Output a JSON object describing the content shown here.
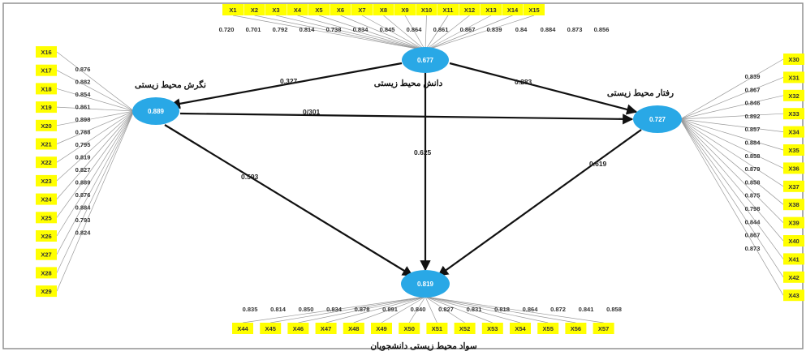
{
  "latent": {
    "knowledge": {
      "name": "دانش محیط زیستی",
      "r2": "0.677"
    },
    "attitude": {
      "name": "نگرش محیط زیستی",
      "r2": "0.889"
    },
    "behavior": {
      "name": "رفتار محیط زیستی",
      "r2": "0.727"
    },
    "literacy": {
      "name": "سواد محیط زیستی دانشجویان",
      "r2": "0.819"
    }
  },
  "paths": {
    "knowledge_attitude": "0.327",
    "attitude_behavior": "0/301",
    "knowledge_behavior": "0.283",
    "knowledge_literacy": "0.625",
    "attitude_literacy": "0.593",
    "behavior_literacy": "0.619"
  },
  "indicators": {
    "top": {
      "labels": [
        "X1",
        "X2",
        "X3",
        "X4",
        "X5",
        "X6",
        "X7",
        "X8",
        "X9",
        "X10",
        "X11",
        "X12",
        "X13",
        "X14",
        "X15"
      ],
      "loadings": [
        "0.720",
        "0.701",
        "0.792",
        "0.814",
        "0.738",
        "0.834",
        "0.845",
        "0.864",
        "0.861",
        "0.867",
        "0.839",
        "0.84",
        "0.884",
        "0.873",
        "0.856"
      ]
    },
    "left": {
      "labels": [
        "X16",
        "X17",
        "X18",
        "X19",
        "X20",
        "X21",
        "X22",
        "X23",
        "X24",
        "X25",
        "X26",
        "X27",
        "X28",
        "X29"
      ],
      "loadings": [
        "0.876",
        "0.882",
        "0.854",
        "0.861",
        "0.898",
        "0.788",
        "0.795",
        "0.819",
        "0.827",
        "0.889",
        "0.876",
        "0.884",
        "0.793",
        "0.824"
      ]
    },
    "right": {
      "labels": [
        "X30",
        "X31",
        "X32",
        "X33",
        "X34",
        "X35",
        "X36",
        "X37",
        "X38",
        "X39",
        "X40",
        "X41",
        "X42",
        "X43"
      ],
      "loadings": [
        "0.839",
        "0.867",
        "0.846",
        "0.892",
        "0.857",
        "0.884",
        "0.858",
        "0.879",
        "0.858",
        "0.875",
        "0.798",
        "0.844",
        "0.867",
        "0.873"
      ]
    },
    "bottom": {
      "labels": [
        "X44",
        "X45",
        "X46",
        "X47",
        "X48",
        "X49",
        "X50",
        "X51",
        "X52",
        "X53",
        "X54",
        "X55",
        "X56",
        "X57"
      ],
      "loadings": [
        "0.835",
        "0.814",
        "0.850",
        "0.834",
        "0.878",
        "0.891",
        "0.840",
        "0.827",
        "0.831",
        "0.818",
        "0.864",
        "0.872",
        "0.841",
        "0.858"
      ]
    }
  },
  "colors": {
    "latent_fill": "#29a8e6",
    "indicator_fill": "#ffff00",
    "path_line": "#111111"
  }
}
